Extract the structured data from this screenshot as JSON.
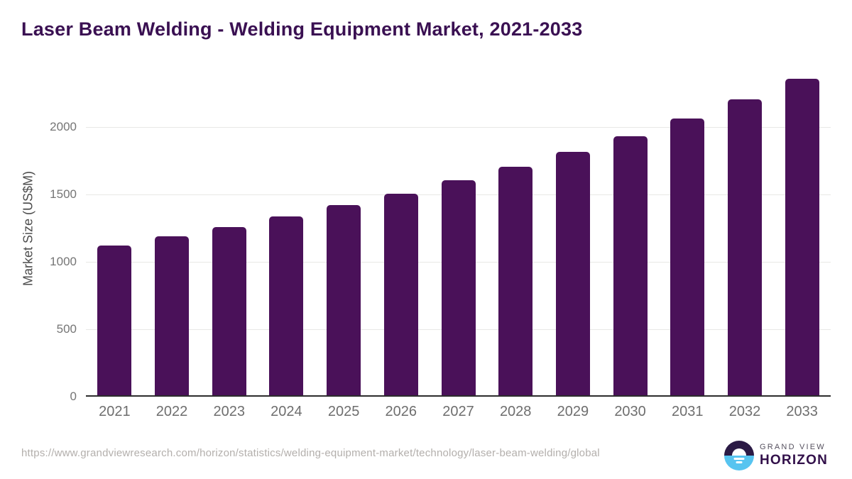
{
  "header": {
    "title": "Laser Beam Welding - Welding Equipment Market, 2021-2033"
  },
  "chart_data": {
    "type": "bar",
    "title": "Laser Beam Welding - Welding Equipment Market, 2021-2033",
    "categories": [
      "2021",
      "2022",
      "2023",
      "2024",
      "2025",
      "2026",
      "2027",
      "2028",
      "2029",
      "2030",
      "2031",
      "2032",
      "2033"
    ],
    "values": [
      1120,
      1187,
      1260,
      1335,
      1419,
      1507,
      1604,
      1706,
      1817,
      1933,
      2063,
      2203,
      2356
    ],
    "xlabel": "",
    "ylabel": "Market Size (US$M)",
    "ylim": [
      0,
      2415
    ],
    "yticks": [
      0,
      500,
      1000,
      1500,
      2000
    ],
    "grid": "horizontal",
    "legend": "none",
    "bar_color": "#4a1159"
  },
  "footer": {
    "source_url": "https://www.grandviewresearch.com/horizon/statistics/welding-equipment-market/technology/laser-beam-welding/global",
    "logo": {
      "icon": "horizon-sunset-icon",
      "brand_top": "GRAND VIEW",
      "brand_bottom": "HORIZON"
    }
  },
  "colors": {
    "background": "#ffffff",
    "bar": "#4a1159",
    "title_text": "#3a1052",
    "axis_title_text": "#4d4d4d",
    "y_tick_text": "#757575",
    "x_tick_text": "#6e6e6e",
    "gridline": "#e8e8e6",
    "baseline": "#2d2d2d",
    "source_text": "#b3afac",
    "logo_dark": "#2b1a45",
    "logo_blue": "#57c4f0",
    "logo_brand_top_text": "#55505e",
    "logo_brand_bottom_text": "#32104a"
  }
}
